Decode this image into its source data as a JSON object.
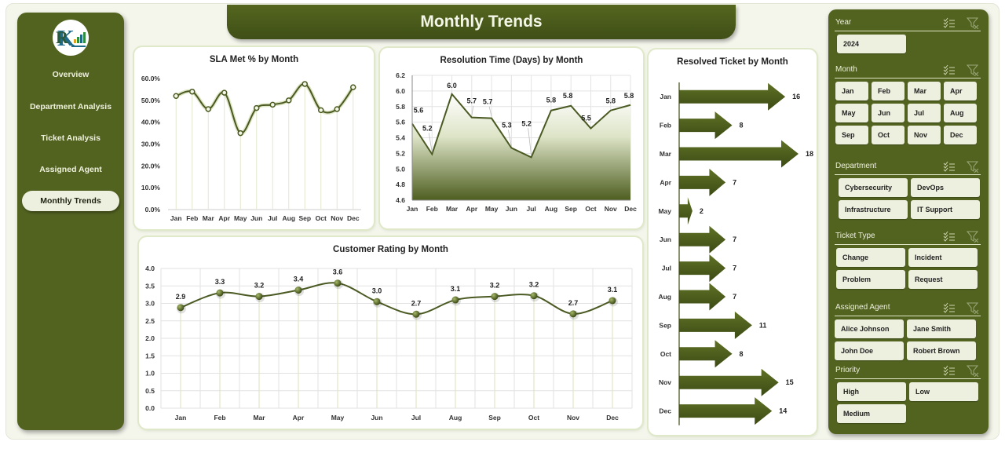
{
  "header": {
    "title": "Monthly Trends"
  },
  "sidebar": {
    "items": [
      {
        "label": "Overview",
        "active": false
      },
      {
        "label": "Department Analysis",
        "active": false
      },
      {
        "label": "Ticket Analysis",
        "active": false
      },
      {
        "label": "Assigned Agent",
        "active": false
      },
      {
        "label": "Monthly Trends",
        "active": true
      }
    ]
  },
  "colors": {
    "primary": "#526320",
    "dark": "#3f4f17",
    "chip": "#eef0df",
    "background": "#f4f6ec"
  },
  "slicers": {
    "year": {
      "label": "Year",
      "items": [
        "2024"
      ]
    },
    "month": {
      "label": "Month",
      "items": [
        "Jan",
        "Feb",
        "Mar",
        "Apr",
        "May",
        "Jun",
        "Jul",
        "Aug",
        "Sep",
        "Oct",
        "Nov",
        "Dec"
      ]
    },
    "department": {
      "label": "Department",
      "items": [
        "Cybersecurity",
        "DevOps",
        "Infrastructure",
        "IT Support"
      ]
    },
    "ticket_type": {
      "label": "Ticket Type",
      "items": [
        "Change",
        "Incident",
        "Problem",
        "Request"
      ]
    },
    "assigned_agent": {
      "label": "Assigned Agent",
      "items": [
        "Alice Johnson",
        "Jane Smith",
        "John Doe",
        "Robert Brown"
      ]
    },
    "priority": {
      "label": "Priority",
      "items": [
        "High",
        "Low",
        "Medium"
      ]
    },
    "icons": {
      "multi_select": "multi-select-icon",
      "clear_filter": "clear-filter-icon"
    }
  },
  "chart_data": [
    {
      "id": "sla",
      "type": "line",
      "title": "SLA Met % by Month",
      "categories": [
        "Jan",
        "Feb",
        "Mar",
        "Apr",
        "May",
        "Jun",
        "Jul",
        "Aug",
        "Sep",
        "Oct",
        "Nov",
        "Dec"
      ],
      "values": [
        52.0,
        54.0,
        46.0,
        53.5,
        35.0,
        46.5,
        48.0,
        50.0,
        57.5,
        45.5,
        46.0,
        56.0
      ],
      "yticks": [
        "0.0%",
        "10.0%",
        "20.0%",
        "30.0%",
        "40.0%",
        "50.0%",
        "60.0%"
      ],
      "ylim": [
        0,
        60
      ],
      "xlabel": "",
      "ylabel": "",
      "smooth": true
    },
    {
      "id": "resolution",
      "type": "area",
      "title": "Resolution Time (Days) by Month",
      "categories": [
        "Jan",
        "Feb",
        "Mar",
        "Apr",
        "May",
        "Jun",
        "Jul",
        "Aug",
        "Sep",
        "Oct",
        "Nov",
        "Dec"
      ],
      "values": [
        5.58,
        5.19,
        5.96,
        5.66,
        5.65,
        5.27,
        5.15,
        5.75,
        5.81,
        5.52,
        5.75,
        5.82
      ],
      "labels": [
        "5.6",
        "5.2",
        "6.0",
        "5.7",
        "5.7",
        "5.3",
        "5.2",
        "5.8",
        "5.8",
        "5.5",
        "5.8",
        "5.8"
      ],
      "yticks": [
        "4.6",
        "4.8",
        "5.0",
        "5.2",
        "5.4",
        "5.6",
        "5.8",
        "6.0",
        "6.2"
      ],
      "ylim": [
        4.6,
        6.2
      ],
      "xlabel": "",
      "ylabel": ""
    },
    {
      "id": "resolved",
      "type": "bar",
      "orientation": "horizontal",
      "title": "Resolved Ticket by Month",
      "categories": [
        "Jan",
        "Feb",
        "Mar",
        "Apr",
        "May",
        "Jun",
        "Jul",
        "Aug",
        "Sep",
        "Oct",
        "Nov",
        "Dec"
      ],
      "values": [
        16,
        8,
        18,
        7,
        2,
        7,
        7,
        7,
        11,
        8,
        15,
        14
      ],
      "xlabel": "",
      "ylabel": ""
    },
    {
      "id": "rating",
      "type": "line",
      "title": "Customer Rating by Month",
      "categories": [
        "Jan",
        "Feb",
        "Mar",
        "Apr",
        "May",
        "Jun",
        "Jul",
        "Aug",
        "Sep",
        "Oct",
        "Nov",
        "Dec"
      ],
      "values": [
        2.88,
        3.3,
        3.2,
        3.38,
        3.58,
        3.05,
        2.69,
        3.1,
        3.2,
        3.22,
        2.7,
        3.08
      ],
      "labels": [
        "2.9",
        "3.3",
        "3.2",
        "3.4",
        "3.6",
        "3.0",
        "2.7",
        "3.1",
        "3.2",
        "3.2",
        "2.7",
        "3.1"
      ],
      "yticks": [
        "0.0",
        "0.5",
        "1.0",
        "1.5",
        "2.0",
        "2.5",
        "3.0",
        "3.5",
        "4.0"
      ],
      "ylim": [
        0,
        4
      ],
      "xlabel": "",
      "ylabel": "",
      "smooth": true
    }
  ]
}
